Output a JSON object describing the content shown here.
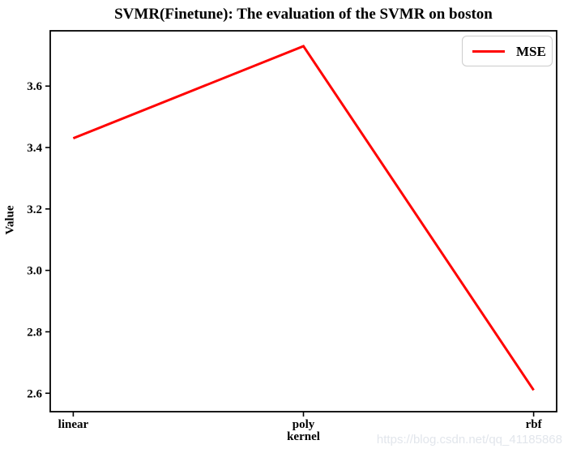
{
  "watermark": {
    "text": "https://blog.csdn.net/qq_41185868",
    "color": "#e2e6ec"
  },
  "chart_data": {
    "type": "line",
    "title": "SVMR(Finetune): The evaluation of the SVMR on boston",
    "xlabel": "kernel",
    "ylabel": "Value",
    "categories": [
      "linear",
      "poly",
      "rbf"
    ],
    "series": [
      {
        "name": "MSE",
        "color": "#ff0000",
        "values": [
          3.43,
          3.73,
          2.61
        ]
      }
    ],
    "yticks": [
      2.6,
      2.8,
      3.0,
      3.2,
      3.4,
      3.6
    ],
    "ylim": [
      2.54,
      3.78
    ],
    "grid": false,
    "legend_position": "upper right",
    "line_width": 3,
    "axes_color": "#000000",
    "background": "#ffffff"
  }
}
